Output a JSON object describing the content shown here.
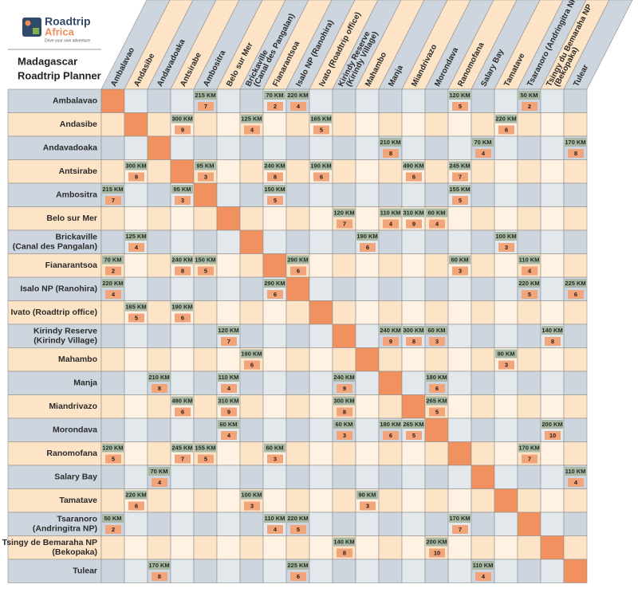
{
  "logo": {
    "name": [
      "Roadtrip",
      "Africa"
    ],
    "tagline": "Drive your own adventure"
  },
  "title": [
    "Madagascar",
    "Roadtrip Planner"
  ],
  "columns": [
    [
      "Ambalavao"
    ],
    [
      "Andasibe"
    ],
    [
      "Andavadoaka"
    ],
    [
      "Antsirabe"
    ],
    [
      "Ambositra"
    ],
    [
      "Belo sur Mer"
    ],
    [
      "Brickaville",
      "(Canal des Pangalan)"
    ],
    [
      "Fianarantsoa"
    ],
    [
      "Isalo NP (Ranohira)"
    ],
    [
      "Ivato (Roadtrip office)"
    ],
    [
      "Kirindy Reserve",
      "(Kirindy Village)"
    ],
    [
      "Mahambo"
    ],
    [
      "Manja"
    ],
    [
      "Miandrivazo"
    ],
    [
      "Morondava"
    ],
    [
      "Ranomofana"
    ],
    [
      "Salary Bay"
    ],
    [
      "Tamatave"
    ],
    [
      "Tsaranoro (Andringitra NP)"
    ],
    [
      "Tsingy du Bemaraha NP",
      "(Bekopaka)"
    ],
    [
      "Tulear"
    ]
  ],
  "rows": [
    {
      "label": [
        "Ambalavao"
      ],
      "cells": [
        null,
        null,
        null,
        null,
        {
          "distance": "215 KM",
          "time": 7
        },
        null,
        null,
        {
          "distance": "70 KM",
          "time": 2
        },
        {
          "distance": "220 KM",
          "time": 4
        },
        null,
        null,
        null,
        null,
        null,
        null,
        {
          "distance": "120 KM",
          "time": 5
        },
        null,
        null,
        {
          "distance": "50 KM",
          "time": 2
        },
        null,
        null
      ]
    },
    {
      "label": [
        "Andasibe"
      ],
      "cells": [
        null,
        null,
        null,
        {
          "distance": "300 KM",
          "time": 9
        },
        null,
        null,
        {
          "distance": "125 KM",
          "time": 4
        },
        null,
        null,
        {
          "distance": "165 KM",
          "time": 5
        },
        null,
        null,
        null,
        null,
        null,
        null,
        null,
        {
          "distance": "220 KM",
          "time": 6
        },
        null,
        null,
        null
      ]
    },
    {
      "label": [
        "Andavadoaka"
      ],
      "cells": [
        null,
        null,
        null,
        null,
        null,
        null,
        null,
        null,
        null,
        null,
        null,
        null,
        {
          "distance": "210 KM",
          "time": 8
        },
        null,
        null,
        null,
        {
          "distance": "70 KM",
          "time": 4
        },
        null,
        null,
        null,
        {
          "distance": "170 KM",
          "time": 8
        }
      ]
    },
    {
      "label": [
        "Antsirabe"
      ],
      "cells": [
        null,
        {
          "distance": "300 KM",
          "time": 9
        },
        null,
        null,
        {
          "distance": "95 KM",
          "time": 3
        },
        null,
        null,
        {
          "distance": "240 KM",
          "time": 8
        },
        null,
        {
          "distance": "190 KM",
          "time": 6
        },
        null,
        null,
        null,
        {
          "distance": "490 KM",
          "time": 6
        },
        null,
        {
          "distance": "245 KM",
          "time": 7
        },
        null,
        null,
        null,
        null,
        null
      ]
    },
    {
      "label": [
        "Ambositra"
      ],
      "cells": [
        {
          "distance": "215 KM",
          "time": 7
        },
        null,
        null,
        {
          "distance": "95 KM",
          "time": 3
        },
        null,
        null,
        null,
        {
          "distance": "150 KM",
          "time": 5
        },
        null,
        null,
        null,
        null,
        null,
        null,
        null,
        {
          "distance": "155 KM",
          "time": 5
        },
        null,
        null,
        null,
        null,
        null
      ]
    },
    {
      "label": [
        "Belo sur Mer"
      ],
      "cells": [
        null,
        null,
        null,
        null,
        null,
        null,
        null,
        null,
        null,
        null,
        {
          "distance": "120 KM",
          "time": 7
        },
        null,
        {
          "distance": "110 KM",
          "time": 4
        },
        {
          "distance": "310 KM",
          "time": 9
        },
        {
          "distance": "60 KM",
          "time": 4
        },
        null,
        null,
        null,
        null,
        null,
        null
      ]
    },
    {
      "label": [
        "Brickaville",
        "(Canal des Pangalan)"
      ],
      "cells": [
        null,
        {
          "distance": "125 KM",
          "time": 4
        },
        null,
        null,
        null,
        null,
        null,
        null,
        null,
        null,
        null,
        {
          "distance": "190 KM",
          "time": 6
        },
        null,
        null,
        null,
        null,
        null,
        {
          "distance": "100 KM",
          "time": 3
        },
        null,
        null,
        null
      ]
    },
    {
      "label": [
        "Fianarantsoa"
      ],
      "cells": [
        {
          "distance": "70 KM",
          "time": 2
        },
        null,
        null,
        {
          "distance": "240 KM",
          "time": 8
        },
        {
          "distance": "150 KM",
          "time": 5
        },
        null,
        null,
        null,
        {
          "distance": "290 KM",
          "time": 6
        },
        null,
        null,
        null,
        null,
        null,
        null,
        {
          "distance": "60 KM",
          "time": 3
        },
        null,
        null,
        {
          "distance": "110 KM",
          "time": 4
        },
        null,
        null
      ]
    },
    {
      "label": [
        "Isalo NP (Ranohira)"
      ],
      "cells": [
        {
          "distance": "220 KM",
          "time": 4
        },
        null,
        null,
        null,
        null,
        null,
        null,
        {
          "distance": "290 KM",
          "time": 6
        },
        null,
        null,
        null,
        null,
        null,
        null,
        null,
        null,
        null,
        null,
        {
          "distance": "220 KM",
          "time": 5
        },
        null,
        {
          "distance": "225 KM",
          "time": 6
        }
      ]
    },
    {
      "label": [
        "Ivato (Roadtrip office)"
      ],
      "cells": [
        null,
        {
          "distance": "165 KM",
          "time": 5
        },
        null,
        {
          "distance": "190 KM",
          "time": 6
        },
        null,
        null,
        null,
        null,
        null,
        null,
        null,
        null,
        null,
        null,
        null,
        null,
        null,
        null,
        null,
        null,
        null
      ]
    },
    {
      "label": [
        "Kirindy Reserve",
        "(Kirindy Village)"
      ],
      "cells": [
        null,
        null,
        null,
        null,
        null,
        {
          "distance": "120 KM",
          "time": 7
        },
        null,
        null,
        null,
        null,
        null,
        null,
        {
          "distance": "240 KM",
          "time": 9
        },
        {
          "distance": "300 KM",
          "time": 8
        },
        {
          "distance": "60 KM",
          "time": 3
        },
        null,
        null,
        null,
        null,
        {
          "distance": "140 KM",
          "time": 8
        },
        null
      ]
    },
    {
      "label": [
        "Mahambo"
      ],
      "cells": [
        null,
        null,
        null,
        null,
        null,
        null,
        {
          "distance": "190 KM",
          "time": 6
        },
        null,
        null,
        null,
        null,
        null,
        null,
        null,
        null,
        null,
        null,
        {
          "distance": "90 KM",
          "time": 3
        },
        null,
        null,
        null
      ]
    },
    {
      "label": [
        "Manja"
      ],
      "cells": [
        null,
        null,
        {
          "distance": "210 KM",
          "time": 8
        },
        null,
        null,
        {
          "distance": "110 KM",
          "time": 4
        },
        null,
        null,
        null,
        null,
        {
          "distance": "240 KM",
          "time": 9
        },
        null,
        null,
        null,
        {
          "distance": "180 KM",
          "time": 6
        },
        null,
        null,
        null,
        null,
        null,
        null
      ]
    },
    {
      "label": [
        "Miandrivazo"
      ],
      "cells": [
        null,
        null,
        null,
        {
          "distance": "490 KM",
          "time": 6
        },
        null,
        {
          "distance": "310 KM",
          "time": 9
        },
        null,
        null,
        null,
        null,
        {
          "distance": "300 KM",
          "time": 8
        },
        null,
        null,
        null,
        {
          "distance": "265 KM",
          "time": 5
        },
        null,
        null,
        null,
        null,
        null,
        null
      ]
    },
    {
      "label": [
        "Morondava"
      ],
      "cells": [
        null,
        null,
        null,
        null,
        null,
        {
          "distance": "60 KM",
          "time": 4
        },
        null,
        null,
        null,
        null,
        {
          "distance": "60 KM",
          "time": 3
        },
        null,
        {
          "distance": "180 KM",
          "time": 6
        },
        {
          "distance": "265 KM",
          "time": 5
        },
        null,
        null,
        null,
        null,
        null,
        {
          "distance": "200 KM",
          "time": 10
        },
        null
      ]
    },
    {
      "label": [
        "Ranomofana"
      ],
      "cells": [
        {
          "distance": "120 KM",
          "time": 5
        },
        null,
        null,
        {
          "distance": "245 KM",
          "time": 7
        },
        {
          "distance": "155 KM",
          "time": 5
        },
        null,
        null,
        {
          "distance": "60 KM",
          "time": 3
        },
        null,
        null,
        null,
        null,
        null,
        null,
        null,
        null,
        null,
        null,
        {
          "distance": "170 KM",
          "time": 7
        },
        null,
        null
      ]
    },
    {
      "label": [
        "Salary Bay"
      ],
      "cells": [
        null,
        null,
        {
          "distance": "70 KM",
          "time": 4
        },
        null,
        null,
        null,
        null,
        null,
        null,
        null,
        null,
        null,
        null,
        null,
        null,
        null,
        null,
        null,
        null,
        null,
        {
          "distance": "110 KM",
          "time": 4
        }
      ]
    },
    {
      "label": [
        "Tamatave"
      ],
      "cells": [
        null,
        {
          "distance": "220 KM",
          "time": 6
        },
        null,
        null,
        null,
        null,
        {
          "distance": "100 KM",
          "time": 3
        },
        null,
        null,
        null,
        null,
        {
          "distance": "90 KM",
          "time": 3
        },
        null,
        null,
        null,
        null,
        null,
        null,
        null,
        null,
        null
      ]
    },
    {
      "label": [
        "Tsaranoro",
        "(Andringitra NP)"
      ],
      "cells": [
        {
          "distance": "50 KM",
          "time": 2
        },
        null,
        null,
        null,
        null,
        null,
        null,
        {
          "distance": "110 KM",
          "time": 4
        },
        {
          "distance": "220 KM",
          "time": 5
        },
        null,
        null,
        null,
        null,
        null,
        null,
        {
          "distance": "170 KM",
          "time": 7
        },
        null,
        null,
        null,
        null,
        null
      ]
    },
    {
      "label": [
        "Tsingy de Bemaraha NP",
        "(Bekopaka)"
      ],
      "cells": [
        null,
        null,
        null,
        null,
        null,
        null,
        null,
        null,
        null,
        null,
        {
          "distance": "140 KM",
          "time": 8
        },
        null,
        null,
        null,
        {
          "distance": "200 KM",
          "time": 10
        },
        null,
        null,
        null,
        null,
        null,
        null
      ]
    },
    {
      "label": [
        "Tulear"
      ],
      "cells": [
        null,
        null,
        {
          "distance": "170 KM",
          "time": 8
        },
        null,
        null,
        null,
        null,
        null,
        {
          "distance": "225 KM",
          "time": 6
        },
        null,
        null,
        null,
        null,
        null,
        null,
        null,
        {
          "distance": "110 KM",
          "time": 4
        },
        null,
        null,
        null,
        null
      ]
    }
  ]
}
